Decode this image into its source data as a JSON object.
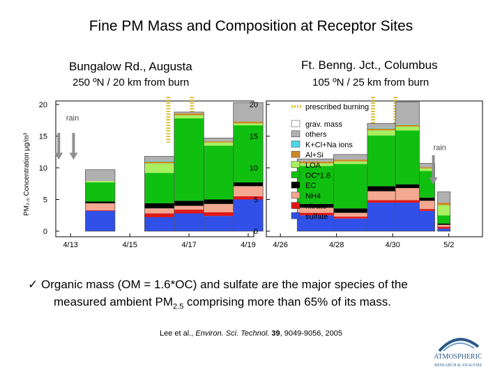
{
  "page_title": "Fine PM Mass and Composition at Receptor Sites",
  "sites": [
    {
      "name": "Bungalow Rd., Augusta",
      "distance": "250 ºN / 20 km from burn"
    },
    {
      "name": "Ft. Benng. Jct., Columbus",
      "distance": "105 ºN / 25 km from burn"
    }
  ],
  "ylabel": "PM₂.₅ Concentration μg/m³",
  "bullet": {
    "check": "✓",
    "line1": "Organic mass (OM = 1.6*OC) and sulfate are the major species of the",
    "line2_pre": "measured ambient PM",
    "line2_sub": "2.5",
    "line2_post": " comprising more than 65% of its mass."
  },
  "citation": {
    "authors": "Lee et al., ",
    "journal": "Environ. Sci. Technol.",
    "volume": " 39",
    "pages": ", 9049-9056, 2005"
  },
  "logo": {
    "line1": "ATMOSPHERIC",
    "line2": "RESEARCH & ANALYSIS"
  },
  "colors": {
    "sulfate": "#3050e8",
    "nitrate": "#e01818",
    "NH4": "#f4a890",
    "EC": "#000000",
    "OC": "#10c010",
    "LOA": "#a8f060",
    "AlSi": "#c88a2a",
    "KClNa": "#50d8e8",
    "others": "#b0b0b0",
    "grav": "#ffffff",
    "burning": "#e0c040",
    "arrow": "#909090"
  },
  "chart_data": [
    {
      "type": "bar",
      "title": "Bungalow Rd., Augusta",
      "ylabel": "PM2.5 Concentration μg/m3",
      "ylim": [
        0,
        20
      ],
      "yticks": [
        0,
        5,
        10,
        15,
        20
      ],
      "xlim": [
        0,
        6.5
      ],
      "xticks": [
        {
          "pos": 0.5,
          "label": "4/13"
        },
        {
          "pos": 2.5,
          "label": "4/15"
        },
        {
          "pos": 4.5,
          "label": "4/17"
        },
        {
          "pos": 6.5,
          "label": "4/19"
        }
      ],
      "annotations": [
        {
          "text": "rain",
          "x": 0.35,
          "y": 17.5
        }
      ],
      "rain_arrows": [
        0.1,
        0.6
      ],
      "burning_lines": [
        3.8,
        4.6
      ],
      "bars": [
        {
          "x0": 1,
          "x1": 2,
          "sulfate": 3.2,
          "nitrate": 0.1,
          "NH4": 1.1,
          "EC": 0.3,
          "OC": 3.0,
          "LOA": 0.2,
          "AlSi": 0,
          "KClNa": 0,
          "others": 1.8
        },
        {
          "x0": 3,
          "x1": 4,
          "sulfate": 2.2,
          "nitrate": 0.6,
          "NH4": 0.8,
          "EC": 0.8,
          "OC": 4.8,
          "LOA": 1.5,
          "AlSi": 0.3,
          "KClNa": 0.1,
          "others": 0.7
        },
        {
          "x0": 4,
          "x1": 5,
          "sulfate": 2.8,
          "nitrate": 0.6,
          "NH4": 0.6,
          "EC": 0.8,
          "OC": 13.0,
          "LOA": 0.5,
          "AlSi": 0.3,
          "KClNa": 0,
          "others": 0.2
        },
        {
          "x0": 5,
          "x1": 6,
          "sulfate": 2.4,
          "nitrate": 0.6,
          "NH4": 1.3,
          "EC": 0.7,
          "OC": 8.5,
          "LOA": 0.5,
          "AlSi": 0.2,
          "KClNa": 0,
          "others": 0.5
        },
        {
          "x0": 6,
          "x1": 7,
          "sulfate": 5.0,
          "nitrate": 0.5,
          "NH4": 1.6,
          "EC": 0.6,
          "OC": 9.0,
          "LOA": 0.3,
          "AlSi": 0.3,
          "KClNa": 0,
          "others": 3.0
        }
      ]
    },
    {
      "type": "bar",
      "title": "Ft. Benng. Jct., Columbus",
      "ylim": [
        0,
        20
      ],
      "yticks": [
        0,
        5,
        10,
        15,
        20
      ],
      "xlim": [
        0,
        7.5
      ],
      "xticks": [
        {
          "pos": 0.5,
          "label": "4/26"
        },
        {
          "pos": 2.5,
          "label": "4/28"
        },
        {
          "pos": 4.5,
          "label": "4/30"
        },
        {
          "pos": 6.5,
          "label": "5/2"
        }
      ],
      "annotations": [
        {
          "text": "rain",
          "x": 5.95,
          "y": 12.8
        }
      ],
      "rain_arrows": [
        5.95
      ],
      "burning_lines": [
        3.8,
        4.6
      ],
      "legend": {
        "burning": "prescribed burning",
        "items": [
          {
            "key": "grav",
            "label": "grav. mass"
          },
          {
            "key": "others",
            "label": "others"
          },
          {
            "key": "KClNa",
            "label": "K+Cl+Na ions"
          },
          {
            "key": "AlSi",
            "label": "Al+Si"
          },
          {
            "key": "LOA",
            "label": "LOA"
          },
          {
            "key": "OC",
            "label": "OC*1.6"
          },
          {
            "key": "EC",
            "label": "EC"
          },
          {
            "key": "NH4",
            "label": "NH4"
          },
          {
            "key": "nitrate",
            "label": "nitrate"
          },
          {
            "key": "sulfate",
            "label": "sulfate"
          }
        ]
      },
      "bars": [
        {
          "x0": 1.1,
          "x1": 2.4,
          "sulfate": 2.5,
          "nitrate": 0.4,
          "NH4": 0.8,
          "EC": 0.6,
          "OC": 6.0,
          "LOA": 0.4,
          "AlSi": 0.3,
          "KClNa": 0,
          "others": 0.4
        },
        {
          "x0": 2.4,
          "x1": 3.6,
          "sulfate": 2.0,
          "nitrate": 0.3,
          "NH4": 0.6,
          "EC": 0.7,
          "OC": 7.0,
          "LOA": 0.4,
          "AlSi": 0.3,
          "KClNa": 0,
          "others": 0.8
        },
        {
          "x0": 3.6,
          "x1": 4.6,
          "sulfate": 4.5,
          "nitrate": 0.4,
          "NH4": 1.4,
          "EC": 0.8,
          "OC": 8.0,
          "LOA": 0.8,
          "AlSi": 0.3,
          "KClNa": 0.1,
          "others": 0.7
        },
        {
          "x0": 4.6,
          "x1": 5.45,
          "sulfate": 4.5,
          "nitrate": 0.4,
          "NH4": 1.9,
          "EC": 0.6,
          "OC": 8.5,
          "LOA": 0.6,
          "AlSi": 0.3,
          "KClNa": 0.1,
          "others": 3.5
        },
        {
          "x0": 5.45,
          "x1": 6.0,
          "sulfate": 3.2,
          "nitrate": 0.3,
          "NH4": 1.3,
          "EC": 0.5,
          "OC": 4.2,
          "LOA": 0.4,
          "AlSi": 0.2,
          "KClNa": 0,
          "others": 0.6
        },
        {
          "x0": 6.1,
          "x1": 6.55,
          "sulfate": 0.4,
          "nitrate": 0.3,
          "NH4": 0.3,
          "EC": 0.2,
          "OC": 1.3,
          "LOA": 1.6,
          "AlSi": 0.4,
          "KClNa": 0,
          "others": 1.7
        }
      ]
    }
  ]
}
